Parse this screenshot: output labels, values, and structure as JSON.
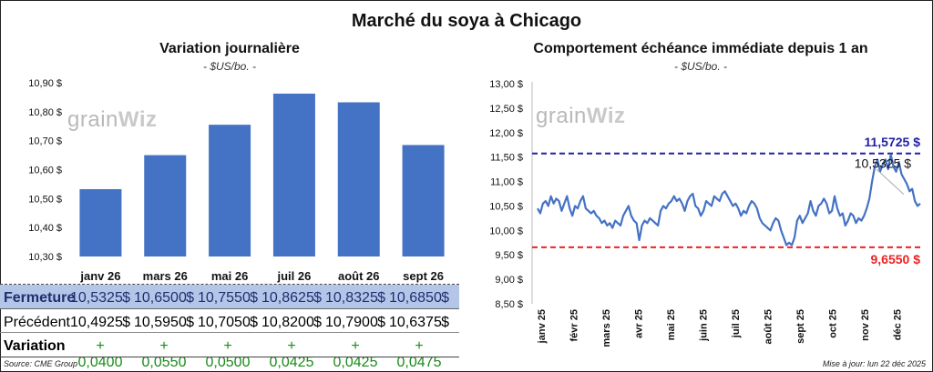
{
  "title": "Marché du soya à Chicago",
  "left": {
    "title": "Variation journalière",
    "subtitle": "- $US/bo. -",
    "watermark_a": "grain",
    "watermark_b": "Wiz"
  },
  "right": {
    "title": "Comportement échéance immédiate depuis 1 an",
    "subtitle": "- $US/bo. -",
    "watermark_a": "grain",
    "watermark_b": "Wiz"
  },
  "table": {
    "rows": [
      {
        "label": "Fermeture",
        "values": [
          "10,5325",
          "10,6500",
          "10,7550",
          "10,8625",
          "10,8325",
          "10,6850"
        ],
        "unit": "$"
      },
      {
        "label": "Précédent",
        "values": [
          "10,4925",
          "10,5950",
          "10,7050",
          "10,8200",
          "10,7900",
          "10,6375"
        ],
        "unit": "$"
      },
      {
        "label": "Variation",
        "values": [
          "+ 0,0400",
          "+ 0,0550",
          "+ 0,0500",
          "+ 0,0425",
          "+ 0,0425",
          "+ 0,0475"
        ],
        "unit": ""
      }
    ]
  },
  "footer": {
    "source": "Source: CME Group",
    "updated": "Mise à jour: lun 22 déc 2025"
  },
  "colors": {
    "bar": "#4472c4",
    "line": "#4472c4",
    "high": "#1f1fa8",
    "low": "#ee2222",
    "fermeture_bg": "#b4c6e7",
    "variation": "#1a8a1a"
  },
  "chart_data": [
    {
      "type": "bar",
      "categories": [
        "janv 26",
        "mars 26",
        "mai 26",
        "juil 26",
        "août 26",
        "sept 26"
      ],
      "values": [
        10.5325,
        10.65,
        10.755,
        10.8625,
        10.8325,
        10.685
      ],
      "ylim": [
        10.3,
        10.9
      ],
      "yticks": [
        "10,30 $",
        "10,40 $",
        "10,50 $",
        "10,60 $",
        "10,70 $",
        "10,80 $",
        "10,90 $"
      ],
      "title": "Variation journalière",
      "ylabel": "$US/bo."
    },
    {
      "type": "line",
      "x_labels": [
        "janv 25",
        "févr 25",
        "mars 25",
        "avr 25",
        "mai 25",
        "juin 25",
        "juil 25",
        "août 25",
        "sept 25",
        "oct 25",
        "nov 25",
        "déc 25"
      ],
      "ylim": [
        8.5,
        13.0
      ],
      "yticks": [
        "8,50 $",
        "9,00 $",
        "9,50 $",
        "10,00 $",
        "10,50 $",
        "11,00 $",
        "11,50 $",
        "12,00 $",
        "12,50 $",
        "13,00 $"
      ],
      "values": [
        10.45,
        10.35,
        10.55,
        10.6,
        10.5,
        10.7,
        10.55,
        10.65,
        10.6,
        10.4,
        10.55,
        10.7,
        10.45,
        10.3,
        10.5,
        10.45,
        10.6,
        10.7,
        10.45,
        10.4,
        10.35,
        10.4,
        10.3,
        10.25,
        10.15,
        10.2,
        10.1,
        10.15,
        10.05,
        10.2,
        10.15,
        10.1,
        10.3,
        10.4,
        10.5,
        10.3,
        10.2,
        10.15,
        9.8,
        10.1,
        10.2,
        10.15,
        10.25,
        10.2,
        10.15,
        10.1,
        10.4,
        10.5,
        10.45,
        10.55,
        10.6,
        10.7,
        10.6,
        10.65,
        10.55,
        10.4,
        10.6,
        10.7,
        10.75,
        10.5,
        10.45,
        10.3,
        10.4,
        10.6,
        10.55,
        10.5,
        10.7,
        10.65,
        10.6,
        10.75,
        10.8,
        10.7,
        10.6,
        10.5,
        10.55,
        10.45,
        10.3,
        10.4,
        10.35,
        10.5,
        10.6,
        10.55,
        10.45,
        10.25,
        10.15,
        10.1,
        10.05,
        10.0,
        10.15,
        10.25,
        10.2,
        10.0,
        9.85,
        9.7,
        9.75,
        9.7,
        9.85,
        10.2,
        10.3,
        10.15,
        10.25,
        10.35,
        10.6,
        10.4,
        10.3,
        10.5,
        10.55,
        10.65,
        10.55,
        10.35,
        10.4,
        10.7,
        10.45,
        10.3,
        10.35,
        10.1,
        10.2,
        10.35,
        10.3,
        10.15,
        10.25,
        10.2,
        10.3,
        10.45,
        10.65,
        11.0,
        11.3,
        11.45,
        11.2,
        11.35,
        11.45,
        11.25,
        11.55,
        11.3,
        11.2,
        11.4,
        11.15,
        11.05,
        10.95,
        10.8,
        10.85,
        10.6,
        10.5,
        10.55
      ],
      "high": 11.5725,
      "low": 9.655,
      "high_label": "11,5725 $",
      "low_label": "9,6550 $",
      "last_label": "10,5325 $",
      "title": "Comportement échéance immédiate depuis 1 an",
      "ylabel": "$US/bo."
    }
  ]
}
